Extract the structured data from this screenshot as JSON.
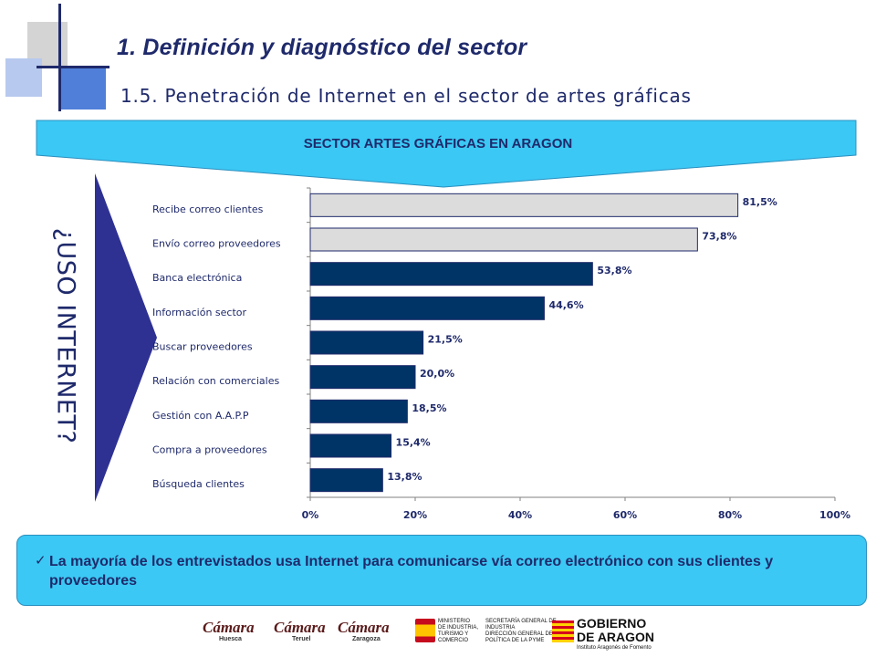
{
  "header": {
    "title": "1.  Definición y diagnóstico del sector",
    "subtitle": "1.5. Penetración de Internet en el sector de artes gráficas",
    "accent_color": "#1f2a6b",
    "light_accent": "#4f7fd9"
  },
  "banner": {
    "text": "SECTOR ARTES GRÁFICAS EN ARAGON",
    "color": "#3bc8f4"
  },
  "side_question": "¿USO INTERNET?",
  "chart_data": {
    "type": "bar",
    "orientation": "horizontal",
    "categories": [
      "Recibe correo clientes",
      "Envío correo proveedores",
      "Banca electrónica",
      "Información sector",
      "Buscar proveedores",
      "Relación con comerciales",
      "Gestión con A.A.P.P",
      "Compra a proveedores",
      "Búsqueda  clientes"
    ],
    "values": [
      81.5,
      73.8,
      53.8,
      44.6,
      21.5,
      20.0,
      18.5,
      15.4,
      13.8
    ],
    "value_labels": [
      "81,5%",
      "73,8%",
      "53,8%",
      "44,6%",
      "21,5%",
      "20,0%",
      "18,5%",
      "15,4%",
      "13,8%"
    ],
    "bar_colors": [
      "#dcdcdc",
      "#dcdcdc",
      "#003366",
      "#003366",
      "#003366",
      "#003366",
      "#003366",
      "#003366",
      "#003366"
    ],
    "xlim": [
      0,
      100
    ],
    "xticks": [
      0,
      20,
      40,
      60,
      80,
      100
    ],
    "xtick_labels": [
      "0%",
      "20%",
      "40%",
      "60%",
      "80%",
      "100%"
    ],
    "grid": false,
    "legend": "none"
  },
  "note": {
    "check": "✓",
    "text": "La mayoría de los entrevistados usa Internet para comunicarse vía correo electrónico con sus clientes y proveedores"
  },
  "logos": {
    "camara_1": {
      "name": "Cámara",
      "city": "Huesca"
    },
    "camara_2": {
      "name": "Cámara",
      "city": "Teruel"
    },
    "camara_3": {
      "name": "Cámara",
      "city": "Zaragoza"
    },
    "ministerio": {
      "line1": "MINISTERIO",
      "line2": "DE INDUSTRIA,",
      "line3": "TURISMO Y",
      "line4": "COMERCIO",
      "line5": "SECRETARÍA GENERAL DE",
      "line6": "INDUSTRIA",
      "line7": "DIRECCIÓN GENERAL DE",
      "line8": "POLÍTICA DE LA PYME"
    },
    "gobierno": {
      "line1": "GOBIERNO",
      "line2": "DE ARAGON",
      "line3": "Instituto Aragonés de Fomento"
    }
  }
}
